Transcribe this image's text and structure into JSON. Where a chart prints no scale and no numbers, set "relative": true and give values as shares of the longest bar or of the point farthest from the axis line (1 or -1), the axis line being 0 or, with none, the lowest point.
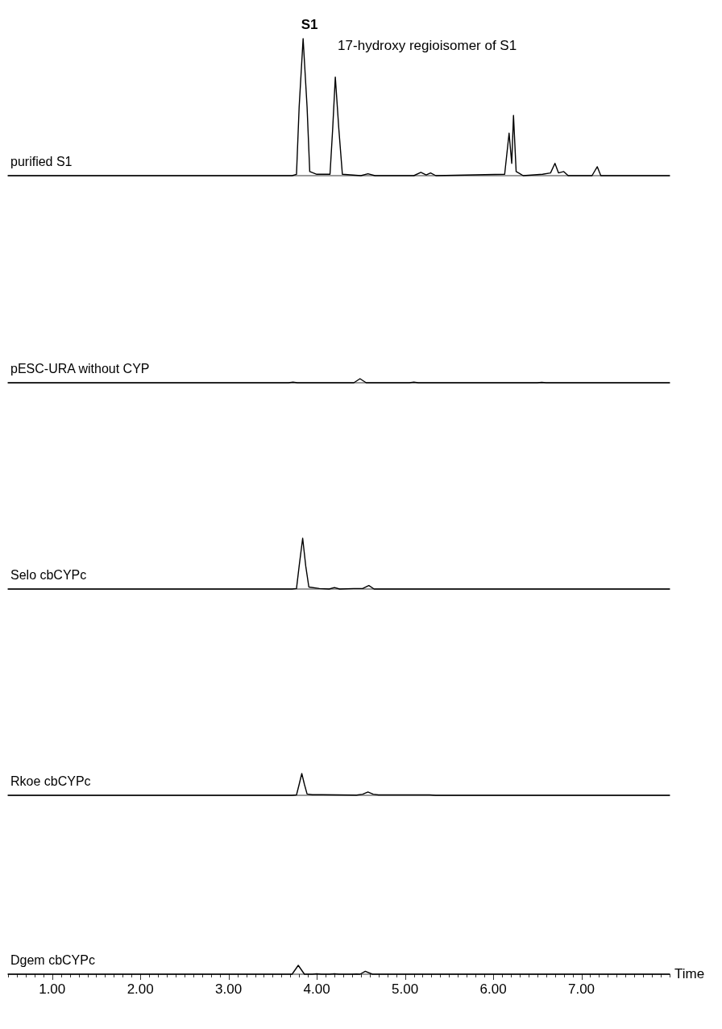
{
  "chart_data": [
    {
      "type": "line",
      "title": "purified S1",
      "relative": true,
      "xlim": [
        0.5,
        8.0
      ],
      "tick_labels": false,
      "line_style": "solid",
      "marker": "none",
      "legend": false,
      "annotations": [
        {
          "text": "S1",
          "x": 3.845,
          "y": 1
        },
        {
          "text": "17-hydroxy regioisomer of S1",
          "x": 4.21,
          "y": 0.72
        }
      ],
      "series": [
        {
          "color": "#000000",
          "x": [
            0.5,
            3.72,
            3.77,
            3.8,
            3.845,
            3.89,
            3.92,
            4.0,
            4.15,
            4.18,
            4.21,
            4.25,
            4.29,
            4.5,
            4.58,
            4.66,
            5.1,
            5.18,
            5.24,
            5.29,
            5.35,
            6.13,
            6.18,
            6.21,
            6.23,
            6.26,
            6.3,
            6.34,
            6.56,
            6.65,
            6.7,
            6.74,
            6.8,
            6.85,
            7.12,
            7.18,
            7.22,
            8.0
          ],
          "values": [
            0,
            0,
            0.01,
            0.5,
            1,
            0.5,
            0.03,
            0.01,
            0.01,
            0.34,
            0.72,
            0.34,
            0.01,
            0,
            0.014,
            0,
            0,
            0.024,
            0.005,
            0.02,
            0,
            0.01,
            0.31,
            0.09,
            0.44,
            0.03,
            0.015,
            0,
            0.01,
            0.02,
            0.09,
            0.02,
            0.03,
            0,
            0,
            0.065,
            0,
            0
          ]
        }
      ]
    },
    {
      "type": "line",
      "title": "pESC-URA without CYP",
      "relative": true,
      "xlim": [
        0.5,
        8.0
      ],
      "tick_labels": false,
      "line_style": "solid",
      "marker": "none",
      "legend": false,
      "series": [
        {
          "color": "#000000",
          "x": [
            0.5,
            3.68,
            3.73,
            3.78,
            4.42,
            4.49,
            4.56,
            5.05,
            5.1,
            5.15,
            6.5,
            6.55,
            6.6,
            8.0
          ],
          "values": [
            0,
            0,
            0.15,
            0,
            0,
            1,
            0,
            0,
            0.15,
            0,
            0,
            0.1,
            0,
            0
          ]
        }
      ]
    },
    {
      "type": "line",
      "title": "Selo cbCYPc",
      "relative": true,
      "xlim": [
        0.5,
        8.0
      ],
      "tick_labels": false,
      "line_style": "solid",
      "marker": "none",
      "legend": false,
      "series": [
        {
          "color": "#000000",
          "x": [
            0.5,
            3.72,
            3.77,
            3.8,
            3.84,
            3.875,
            3.91,
            4.03,
            4.14,
            4.2,
            4.26,
            4.42,
            4.52,
            4.59,
            4.65,
            8.0
          ],
          "values": [
            0,
            0,
            0.01,
            0.45,
            1,
            0.45,
            0.04,
            0.01,
            0,
            0.03,
            0,
            0.01,
            0.01,
            0.07,
            0,
            0
          ]
        }
      ]
    },
    {
      "type": "line",
      "title": "Rkoe cbCYPc",
      "relative": true,
      "xlim": [
        0.5,
        8.0
      ],
      "tick_labels": false,
      "line_style": "solid",
      "marker": "none",
      "legend": false,
      "series": [
        {
          "color": "#000000",
          "x": [
            0.5,
            3.72,
            3.77,
            3.8,
            3.83,
            3.86,
            3.89,
            3.95,
            4.06,
            4.45,
            4.52,
            4.58,
            4.64,
            4.7,
            5.28,
            5.35,
            8.0
          ],
          "values": [
            0,
            0,
            0.02,
            0.5,
            1,
            0.5,
            0.06,
            0.03,
            0.03,
            0.01,
            0.05,
            0.15,
            0.05,
            0.02,
            0.02,
            0,
            0
          ]
        }
      ]
    },
    {
      "type": "line",
      "title": "Dgem cbCYPc",
      "xlabel": "Time",
      "relative": true,
      "xlim": [
        0.5,
        8.0
      ],
      "tick_labels": "x",
      "line_style": "solid",
      "marker": "none",
      "legend": false,
      "xticks": [
        {
          "value": 0.5,
          "label": null
        },
        {
          "value": 0.6,
          "label": null
        },
        {
          "value": 0.7,
          "label": null
        },
        {
          "value": 0.8,
          "label": null
        },
        {
          "value": 0.9,
          "label": null
        },
        {
          "value": 1,
          "label": "1.00"
        },
        {
          "value": 1.1,
          "label": null
        },
        {
          "value": 1.2,
          "label": null
        },
        {
          "value": 1.3,
          "label": null
        },
        {
          "value": 1.4,
          "label": null
        },
        {
          "value": 1.5,
          "label": null
        },
        {
          "value": 1.6,
          "label": null
        },
        {
          "value": 1.7,
          "label": null
        },
        {
          "value": 1.8,
          "label": null
        },
        {
          "value": 1.9,
          "label": null
        },
        {
          "value": 2,
          "label": "2.00"
        },
        {
          "value": 2.1,
          "label": null
        },
        {
          "value": 2.2,
          "label": null
        },
        {
          "value": 2.3,
          "label": null
        },
        {
          "value": 2.4,
          "label": null
        },
        {
          "value": 2.5,
          "label": null
        },
        {
          "value": 2.6,
          "label": null
        },
        {
          "value": 2.7,
          "label": null
        },
        {
          "value": 2.8,
          "label": null
        },
        {
          "value": 2.9,
          "label": null
        },
        {
          "value": 3,
          "label": "3.00"
        },
        {
          "value": 3.1,
          "label": null
        },
        {
          "value": 3.2,
          "label": null
        },
        {
          "value": 3.3,
          "label": null
        },
        {
          "value": 3.4,
          "label": null
        },
        {
          "value": 3.5,
          "label": null
        },
        {
          "value": 3.6,
          "label": null
        },
        {
          "value": 3.7,
          "label": null
        },
        {
          "value": 3.8,
          "label": null
        },
        {
          "value": 3.9,
          "label": null
        },
        {
          "value": 4,
          "label": "4.00"
        },
        {
          "value": 4.1,
          "label": null
        },
        {
          "value": 4.2,
          "label": null
        },
        {
          "value": 4.3,
          "label": null
        },
        {
          "value": 4.4,
          "label": null
        },
        {
          "value": 4.5,
          "label": null
        },
        {
          "value": 4.6,
          "label": null
        },
        {
          "value": 4.7,
          "label": null
        },
        {
          "value": 4.8,
          "label": null
        },
        {
          "value": 4.9,
          "label": null
        },
        {
          "value": 5,
          "label": "5.00"
        },
        {
          "value": 5.1,
          "label": null
        },
        {
          "value": 5.2,
          "label": null
        },
        {
          "value": 5.3,
          "label": null
        },
        {
          "value": 5.4,
          "label": null
        },
        {
          "value": 5.5,
          "label": null
        },
        {
          "value": 5.6,
          "label": null
        },
        {
          "value": 5.7,
          "label": null
        },
        {
          "value": 5.8,
          "label": null
        },
        {
          "value": 5.9,
          "label": null
        },
        {
          "value": 6,
          "label": "6.00"
        },
        {
          "value": 6.1,
          "label": null
        },
        {
          "value": 6.2,
          "label": null
        },
        {
          "value": 6.3,
          "label": null
        },
        {
          "value": 6.4,
          "label": null
        },
        {
          "value": 6.5,
          "label": null
        },
        {
          "value": 6.6,
          "label": null
        },
        {
          "value": 6.7,
          "label": null
        },
        {
          "value": 6.8,
          "label": null
        },
        {
          "value": 6.9,
          "label": null
        },
        {
          "value": 7,
          "label": "7.00"
        },
        {
          "value": 7.1,
          "label": null
        },
        {
          "value": 7.2,
          "label": null
        },
        {
          "value": 7.3,
          "label": null
        },
        {
          "value": 7.4,
          "label": null
        },
        {
          "value": 7.5,
          "label": null
        },
        {
          "value": 7.6,
          "label": null
        },
        {
          "value": 7.7,
          "label": null
        },
        {
          "value": 7.8,
          "label": null
        },
        {
          "value": 7.9,
          "label": null
        },
        {
          "value": 8.0,
          "label": null
        }
      ],
      "series": [
        {
          "color": "#000000",
          "x": [
            0.5,
            3.72,
            3.79,
            3.86,
            3.95,
            4.0,
            4.05,
            4.15,
            4.2,
            4.25,
            4.4,
            4.45,
            4.49,
            4.55,
            4.63,
            8.0
          ],
          "values": [
            0,
            0,
            1,
            0,
            0,
            0.05,
            0,
            0,
            0.05,
            0,
            0,
            0.02,
            0,
            0.33,
            0,
            0
          ]
        }
      ]
    }
  ]
}
